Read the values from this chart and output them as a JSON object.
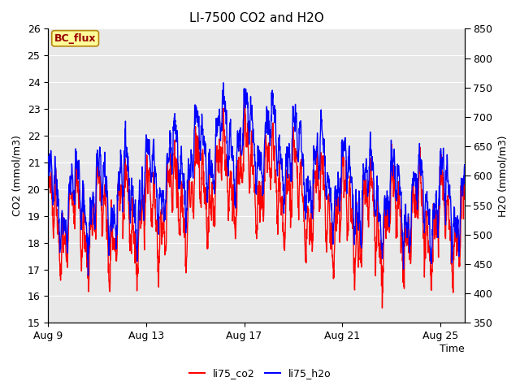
{
  "title": "LI-7500 CO2 and H2O",
  "xlabel": "Time",
  "ylabel_left": "CO2 (mmol/m3)",
  "ylabel_right": "H2O (mmol/m3)",
  "legend_labels": [
    "li75_co2",
    "li75_h2o"
  ],
  "legend_colors": [
    "red",
    "blue"
  ],
  "co2_ylim": [
    15.0,
    26.0
  ],
  "h2o_ylim": [
    350,
    850
  ],
  "co2_yticks": [
    15.0,
    16.0,
    17.0,
    18.0,
    19.0,
    20.0,
    21.0,
    22.0,
    23.0,
    24.0,
    25.0,
    26.0
  ],
  "h2o_yticks": [
    350,
    400,
    450,
    500,
    550,
    600,
    650,
    700,
    750,
    800,
    850
  ],
  "xtick_labels": [
    "Aug 9",
    "Aug 13",
    "Aug 17",
    "Aug 21",
    "Aug 25"
  ],
  "xtick_positions": [
    0,
    4,
    8,
    12,
    16
  ],
  "n_days": 17,
  "fig_bg_color": "#ffffff",
  "plot_bg_color": "#e8e8e8",
  "annotation_text": "BC_flux",
  "annotation_bg": "#ffff99",
  "annotation_border": "#b8860b",
  "annotation_text_color": "#990000",
  "title_fontsize": 11,
  "axis_label_fontsize": 9,
  "tick_fontsize": 9,
  "legend_fontsize": 9,
  "line_width": 1.0
}
